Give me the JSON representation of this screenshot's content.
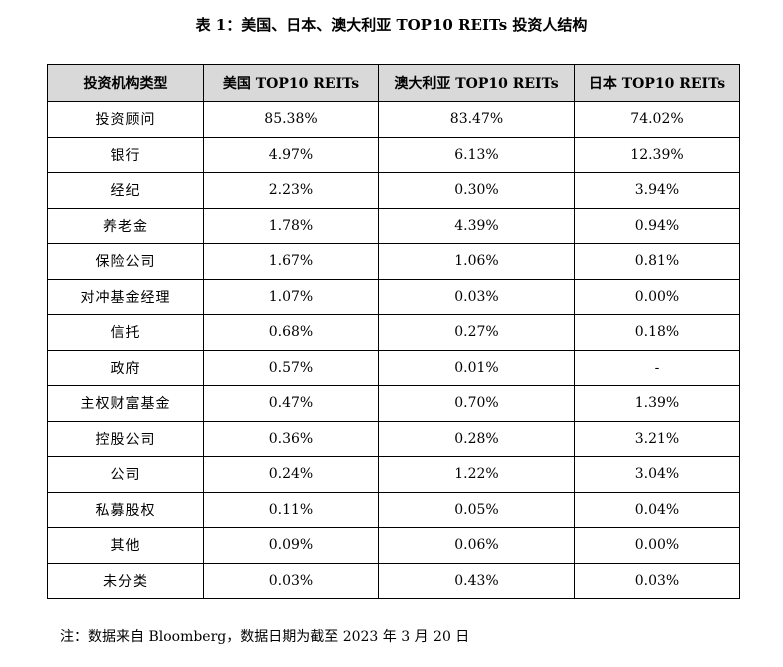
{
  "title": "表 1：美国、日本、澳大利亚 TOP10 REITs 投资人结构",
  "table": {
    "headers": [
      "投资机构类型",
      "美国 TOP10 REITs",
      "澳大利亚 TOP10 REITs",
      "日本 TOP10 REITs"
    ],
    "rows": [
      [
        "投资顾问",
        "85.38%",
        "83.47%",
        "74.02%"
      ],
      [
        "银行",
        "4.97%",
        "6.13%",
        "12.39%"
      ],
      [
        "经纪",
        "2.23%",
        "0.30%",
        "3.94%"
      ],
      [
        "养老金",
        "1.78%",
        "4.39%",
        "0.94%"
      ],
      [
        "保险公司",
        "1.67%",
        "1.06%",
        "0.81%"
      ],
      [
        "对冲基金经理",
        "1.07%",
        "0.03%",
        "0.00%"
      ],
      [
        "信托",
        "0.68%",
        "0.27%",
        "0.18%"
      ],
      [
        "政府",
        "0.57%",
        "0.01%",
        "-"
      ],
      [
        "主权财富基金",
        "0.47%",
        "0.70%",
        "1.39%"
      ],
      [
        "控股公司",
        "0.36%",
        "0.28%",
        "3.21%"
      ],
      [
        "公司",
        "0.24%",
        "1.22%",
        "3.04%"
      ],
      [
        "私募股权",
        "0.11%",
        "0.05%",
        "0.04%"
      ],
      [
        "其他",
        "0.09%",
        "0.06%",
        "0.00%"
      ],
      [
        "未分类",
        "0.03%",
        "0.43%",
        "0.03%"
      ]
    ]
  },
  "note": "注：数据来自 Bloomberg，数据日期为截至 2023 年 3 月 20 日"
}
